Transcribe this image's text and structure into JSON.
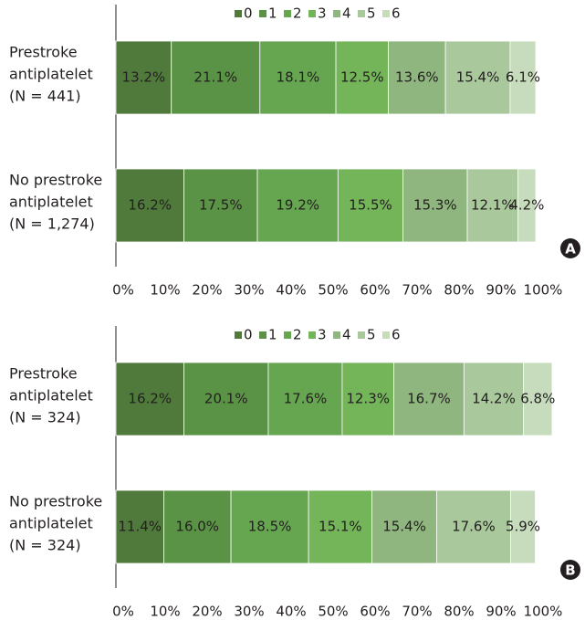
{
  "chart_data": [
    {
      "type": "stacked-bar-horizontal",
      "panel_label": "A",
      "categories": [
        [
          "Prestroke",
          "antiplatelet",
          "(N = 441)"
        ],
        [
          "No prestroke",
          "antiplatelet",
          "(N = 1,274)"
        ]
      ],
      "series": [
        {
          "name": "0",
          "color": "#507a3b",
          "values": [
            13.2,
            16.2
          ],
          "value_labels": [
            "13.2%",
            "16.2%"
          ]
        },
        {
          "name": "1",
          "color": "#5b9346",
          "values": [
            21.1,
            17.5
          ],
          "value_labels": [
            "21.1%",
            "17.5%"
          ]
        },
        {
          "name": "2",
          "color": "#66a650",
          "values": [
            18.1,
            19.2
          ],
          "value_labels": [
            "18.1%",
            "19.2%"
          ]
        },
        {
          "name": "3",
          "color": "#74b55a",
          "values": [
            12.5,
            15.5
          ],
          "value_labels": [
            "12.5%",
            "15.5%"
          ]
        },
        {
          "name": "4",
          "color": "#8fb67f",
          "values": [
            13.6,
            15.3
          ],
          "value_labels": [
            "13.6%",
            "15.3%"
          ]
        },
        {
          "name": "5",
          "color": "#a9c99c",
          "values": [
            15.4,
            12.1
          ],
          "value_labels": [
            "15.4%",
            "12.1%"
          ]
        },
        {
          "name": "6",
          "color": "#c6dcbd",
          "values": [
            6.1,
            4.2
          ],
          "value_labels": [
            "6.1%",
            "4.2%"
          ]
        }
      ],
      "xlim": [
        0,
        100
      ],
      "xticks": [
        {
          "value": 0,
          "label": "0%"
        },
        {
          "value": 10,
          "label": "10%"
        },
        {
          "value": 20,
          "label": "20%"
        },
        {
          "value": 30,
          "label": "30%"
        },
        {
          "value": 40,
          "label": "40%"
        },
        {
          "value": 50,
          "label": "50%"
        },
        {
          "value": 60,
          "label": "60%"
        },
        {
          "value": 70,
          "label": "70%"
        },
        {
          "value": 80,
          "label": "80%"
        },
        {
          "value": 90,
          "label": "90%"
        },
        {
          "value": 100,
          "label": "100%"
        }
      ],
      "legend": "top"
    },
    {
      "type": "stacked-bar-horizontal",
      "panel_label": "B",
      "categories": [
        [
          "Prestroke",
          "antiplatelet",
          "(N = 324)"
        ],
        [
          "No prestroke",
          "antiplatelet",
          "(N = 324)"
        ]
      ],
      "series": [
        {
          "name": "0",
          "color": "#507a3b",
          "values": [
            16.2,
            11.4
          ],
          "value_labels": [
            "16.2%",
            "11.4%"
          ]
        },
        {
          "name": "1",
          "color": "#5b9346",
          "values": [
            20.1,
            16.0
          ],
          "value_labels": [
            "20.1%",
            "16.0%"
          ]
        },
        {
          "name": "2",
          "color": "#66a650",
          "values": [
            17.6,
            18.5
          ],
          "value_labels": [
            "17.6%",
            "18.5%"
          ]
        },
        {
          "name": "3",
          "color": "#74b55a",
          "values": [
            12.3,
            15.1
          ],
          "value_labels": [
            "12.3%",
            "15.1%"
          ]
        },
        {
          "name": "4",
          "color": "#8fb67f",
          "values": [
            16.7,
            15.4
          ],
          "value_labels": [
            "16.7%",
            "15.4%"
          ]
        },
        {
          "name": "5",
          "color": "#a9c99c",
          "values": [
            14.2,
            17.6
          ],
          "value_labels": [
            "14.2%",
            "17.6%"
          ]
        },
        {
          "name": "6",
          "color": "#c6dcbd",
          "values": [
            6.8,
            5.9
          ],
          "value_labels": [
            "6.8%",
            "5.9%"
          ]
        }
      ],
      "xlim": [
        0,
        100
      ],
      "xticks": [
        {
          "value": 0,
          "label": "0%"
        },
        {
          "value": 10,
          "label": "10%"
        },
        {
          "value": 20,
          "label": "20%"
        },
        {
          "value": 30,
          "label": "30%"
        },
        {
          "value": 40,
          "label": "40%"
        },
        {
          "value": 50,
          "label": "50%"
        },
        {
          "value": 60,
          "label": "60%"
        },
        {
          "value": 70,
          "label": "70%"
        },
        {
          "value": 80,
          "label": "80%"
        },
        {
          "value": 90,
          "label": "90%"
        },
        {
          "value": 100,
          "label": "100%"
        }
      ],
      "legend": "top"
    }
  ]
}
